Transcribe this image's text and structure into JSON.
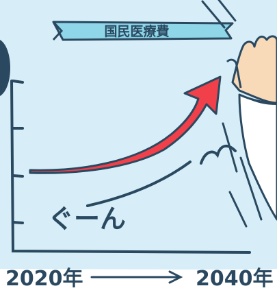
{
  "banner": {
    "title": "国民医療費"
  },
  "annotation": {
    "text": "ぐーん"
  },
  "axis": {
    "start_label": "2020年",
    "end_label": "2040年"
  },
  "colors": {
    "background": "#d7eef8",
    "ink": "#2a4960",
    "banner_fill": "#8fd6e8",
    "arrow_red": "#f2404a",
    "skin": "#f8d9b8",
    "coat": "#ffffff"
  },
  "icons": {
    "trend_arrow": "rising-red-arrow",
    "time_arrow": "long-right-arrow",
    "hand": "raised-hand-icon"
  }
}
